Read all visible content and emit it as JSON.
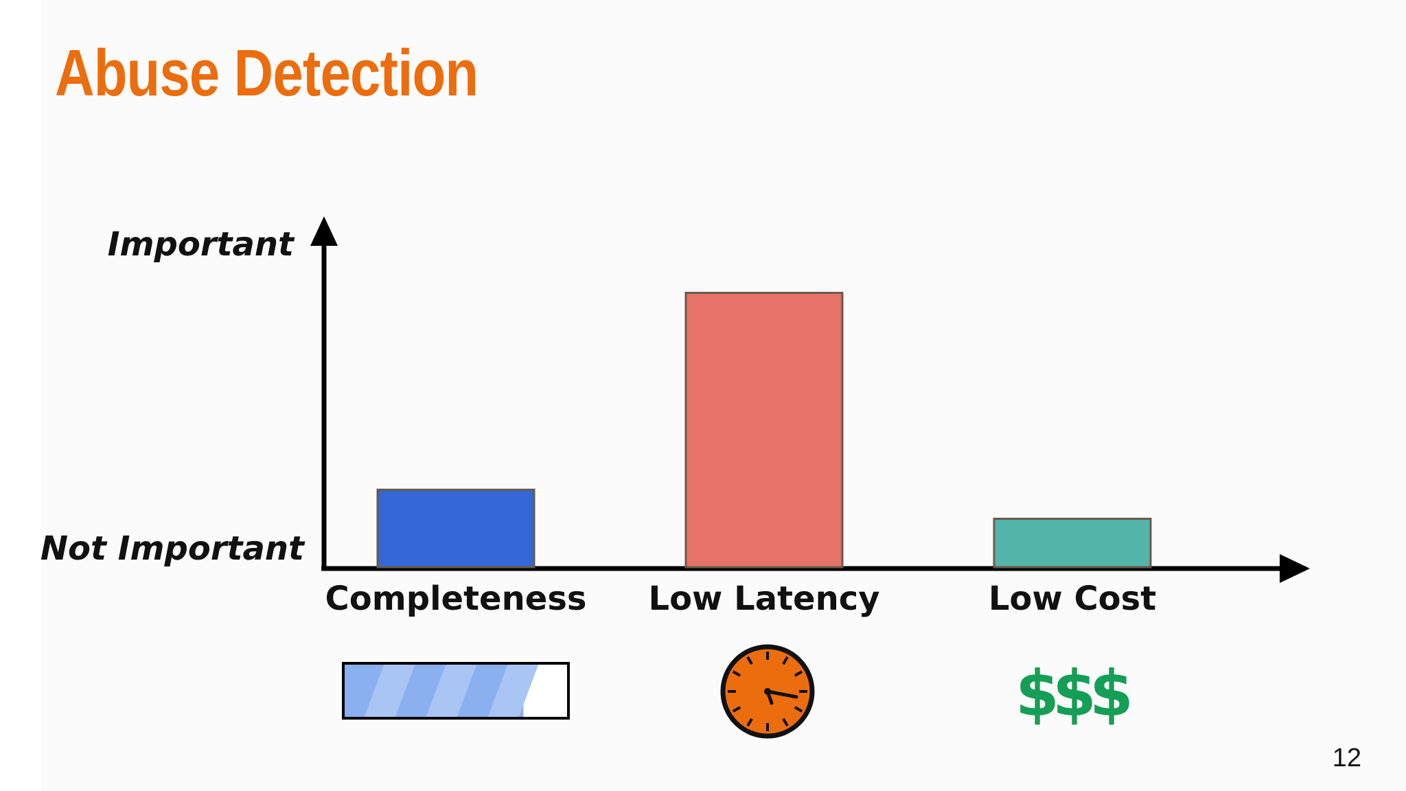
{
  "slide": {
    "title": "Abuse Detection",
    "page_number": "12",
    "colors": {
      "title": "#ec6d0e",
      "background": "#fbfbfb"
    }
  },
  "chart_data": {
    "type": "bar",
    "categories": [
      "Completeness",
      "Low Latency",
      "Low Cost"
    ],
    "values": [
      0.24,
      0.85,
      0.15
    ],
    "colors": [
      "#3468d8",
      "#e6736a",
      "#53b4aa"
    ],
    "bar_outline_color": "#6b5a4a",
    "ylabel_top": "Important",
    "ylabel_bottom": "Not Important",
    "ylim": [
      0,
      1
    ],
    "grid": false,
    "legend": "none",
    "category_icons": [
      {
        "icon": "progress-bar-icon",
        "fill_fraction": 0.8
      },
      {
        "icon": "stopwatch-icon"
      },
      {
        "icon": "dollar-signs-icon",
        "text": "$$$"
      }
    ]
  }
}
